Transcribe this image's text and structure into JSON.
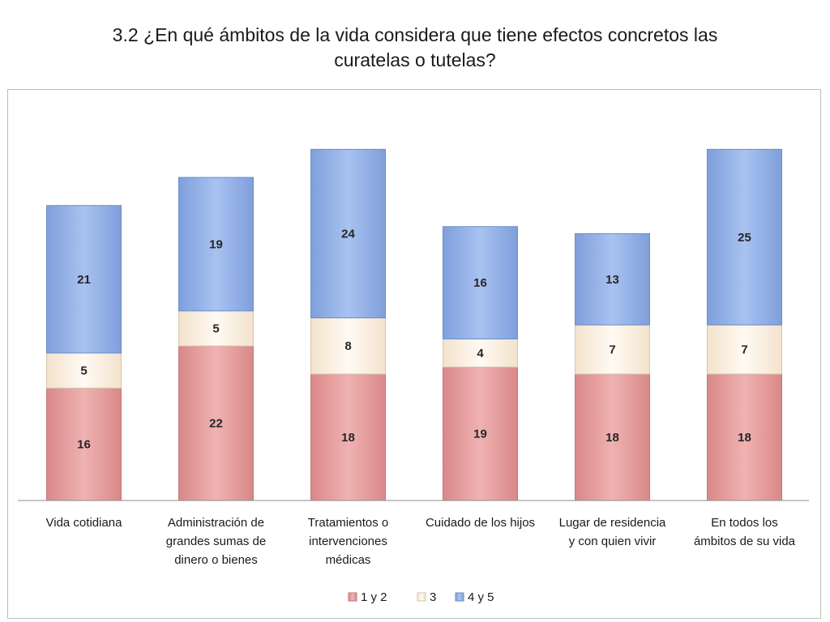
{
  "title": {
    "line1": "3.2   ¿En qué ámbitos de la vida considera que tiene efectos concretos las",
    "line2": "curatelas o tutelas?"
  },
  "chart_data": {
    "type": "bar",
    "stacked": true,
    "title": "3.2 ¿En qué ámbitos de la vida considera que tiene efectos concretos las curatelas o tutelas?",
    "categories": [
      [
        "Vida cotidiana"
      ],
      [
        "Administración de",
        "grandes sumas de",
        "dinero o bienes"
      ],
      [
        "Tratamientos o",
        "intervenciones",
        "médicas"
      ],
      [
        "Cuidado de los hijos"
      ],
      [
        "Lugar de residencia",
        "y con quien vivir"
      ],
      [
        "En todos los",
        "ámbitos de su vida"
      ]
    ],
    "series": [
      {
        "name": "1 y 2",
        "values": [
          16,
          22,
          18,
          19,
          18,
          18
        ],
        "color": "#e6a0a0",
        "stroke": "#c27a7a"
      },
      {
        "name": "3",
        "values": [
          5,
          5,
          8,
          4,
          7,
          7
        ],
        "color": "#fbf0e3",
        "stroke": "#d8c6ae"
      },
      {
        "name": "4 y 5",
        "values": [
          21,
          19,
          24,
          16,
          13,
          25
        ],
        "color": "#95b3e8",
        "stroke": "#6d8ec9"
      }
    ],
    "ylim": [
      0,
      55
    ],
    "legend_position": "bottom",
    "grid": false
  }
}
